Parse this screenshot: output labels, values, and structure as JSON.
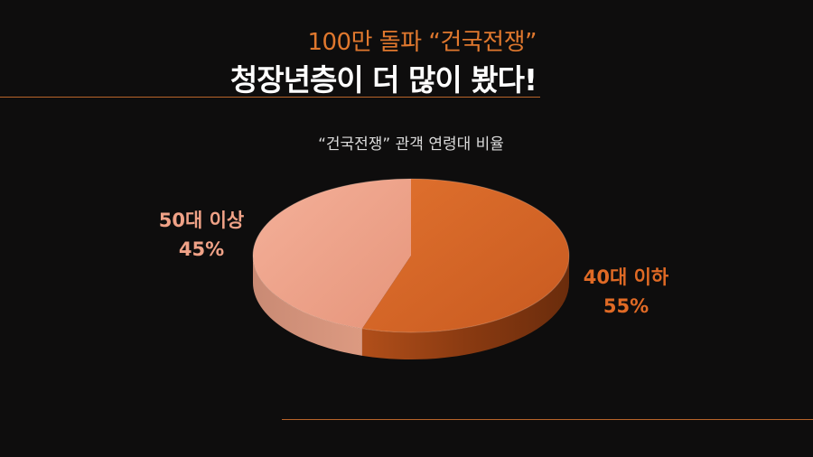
{
  "header": {
    "line1": "100만 돌파 “건국전쟁”",
    "line2": "청장년층이 더 많이 봤다!"
  },
  "colors": {
    "accent": "#e0782e",
    "rule": "#b8642a",
    "slice_under50": "#e06a25",
    "slice_over50": "#f0a287",
    "background": "#0e0d0d"
  },
  "chart_data": {
    "type": "pie",
    "title": "“건국전쟁” 관객 연령대 비율",
    "slices": [
      {
        "label": "40대 이하",
        "value": 55,
        "display": "55%",
        "color": "#d9662a"
      },
      {
        "label": "50대 이상",
        "value": 45,
        "display": "45%",
        "color": "#eca38a"
      }
    ],
    "start": "12 o'clock",
    "direction": "clockwise",
    "style": "3d"
  }
}
